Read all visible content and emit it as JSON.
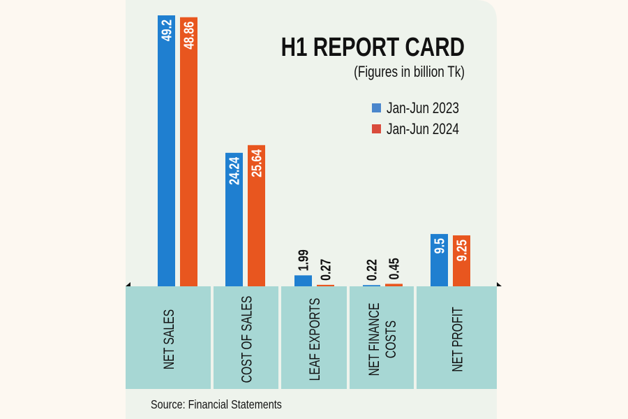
{
  "chart_data": {
    "type": "bar",
    "title": "H1 REPORT CARD",
    "subtitle": "(Figures in billion Tk)",
    "categories": [
      "NET SALES",
      "COST OF SALES",
      "LEAF EXPORTS",
      "NET FINANCE COSTS",
      "NET PROFIT"
    ],
    "category_lines": [
      [
        "NET SALES"
      ],
      [
        "COST OF SALES"
      ],
      [
        "LEAF EXPORTS"
      ],
      [
        "NET FINANCE",
        "COSTS"
      ],
      [
        "NET PROFIT"
      ]
    ],
    "series": [
      {
        "name": "Jan-Jun 2023",
        "color": "#1f7fd0",
        "legend_color": "#4a86cc",
        "values": [
          49.2,
          24.24,
          1.99,
          0.22,
          9.5
        ],
        "labels": [
          "49.2",
          "24.24",
          "1.99",
          "0.22",
          "9.5"
        ]
      },
      {
        "name": "Jan-Jun 2024",
        "color": "#e8561f",
        "legend_color": "#d94b3c",
        "values": [
          48.86,
          25.64,
          0.27,
          0.45,
          9.25
        ],
        "labels": [
          "48.86",
          "25.64",
          "0.27",
          "0.45",
          "9.25"
        ]
      }
    ],
    "ylim": [
      0,
      49.2
    ],
    "legend_position": "top-right",
    "grid": false,
    "source": "Source: Financial Statements"
  },
  "colors": {
    "panel": "#eef3ec",
    "category_band": "#a7d7d4",
    "background": "#fdf8f1"
  }
}
